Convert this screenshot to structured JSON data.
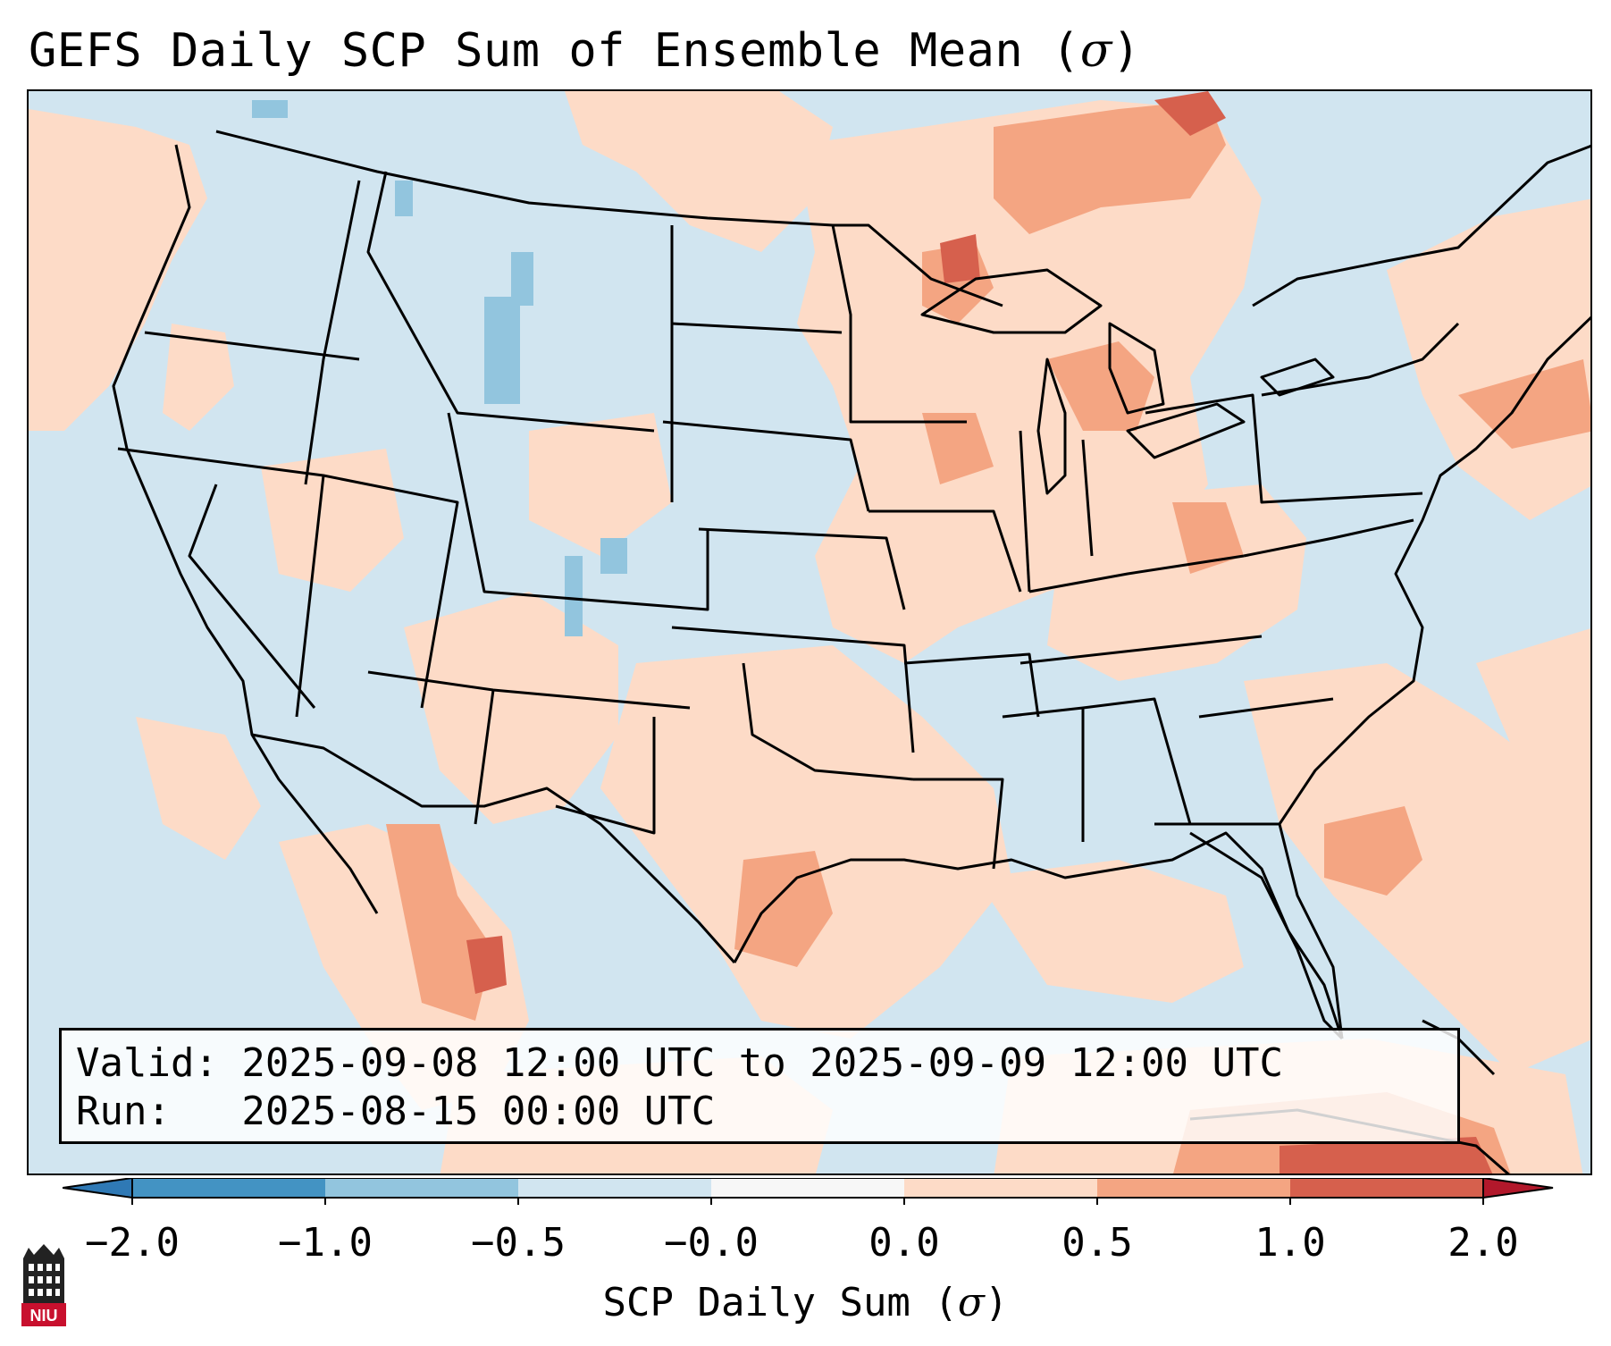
{
  "title": {
    "text": "GEFS Daily SCP Sum of Ensemble Mean (",
    "symbol": "σ",
    "suffix": ")"
  },
  "info": {
    "valid_line": "Valid: 2025-09-08 12:00 UTC to 2025-09-09 12:00 UTC",
    "run_line": "Run:   2025-08-15 00:00 UTC"
  },
  "colorbar": {
    "label_text": "SCP Daily Sum (",
    "label_symbol": "σ",
    "label_suffix": ")",
    "ticks": [
      "−2.0",
      "−1.0",
      "−0.5",
      "−0.0",
      "0.0",
      "0.5",
      "1.0",
      "2.0"
    ],
    "colors": {
      "below_min": "#2f79b5",
      "bin_1": "#4393c3",
      "bin_2": "#92c5de",
      "bin_3": "#d1e5f0",
      "bin_4": "#f7f7f7",
      "bin_5": "#fddbc7",
      "bin_6": "#f4a582",
      "bin_7": "#d6604d",
      "above_max": "#b2182b"
    }
  },
  "map": {
    "background_color": "#d1e5f0",
    "outside_color": "#ffffff",
    "border_color": "#000000"
  },
  "logo": {
    "text": "NIU",
    "color": "#c8102e"
  }
}
